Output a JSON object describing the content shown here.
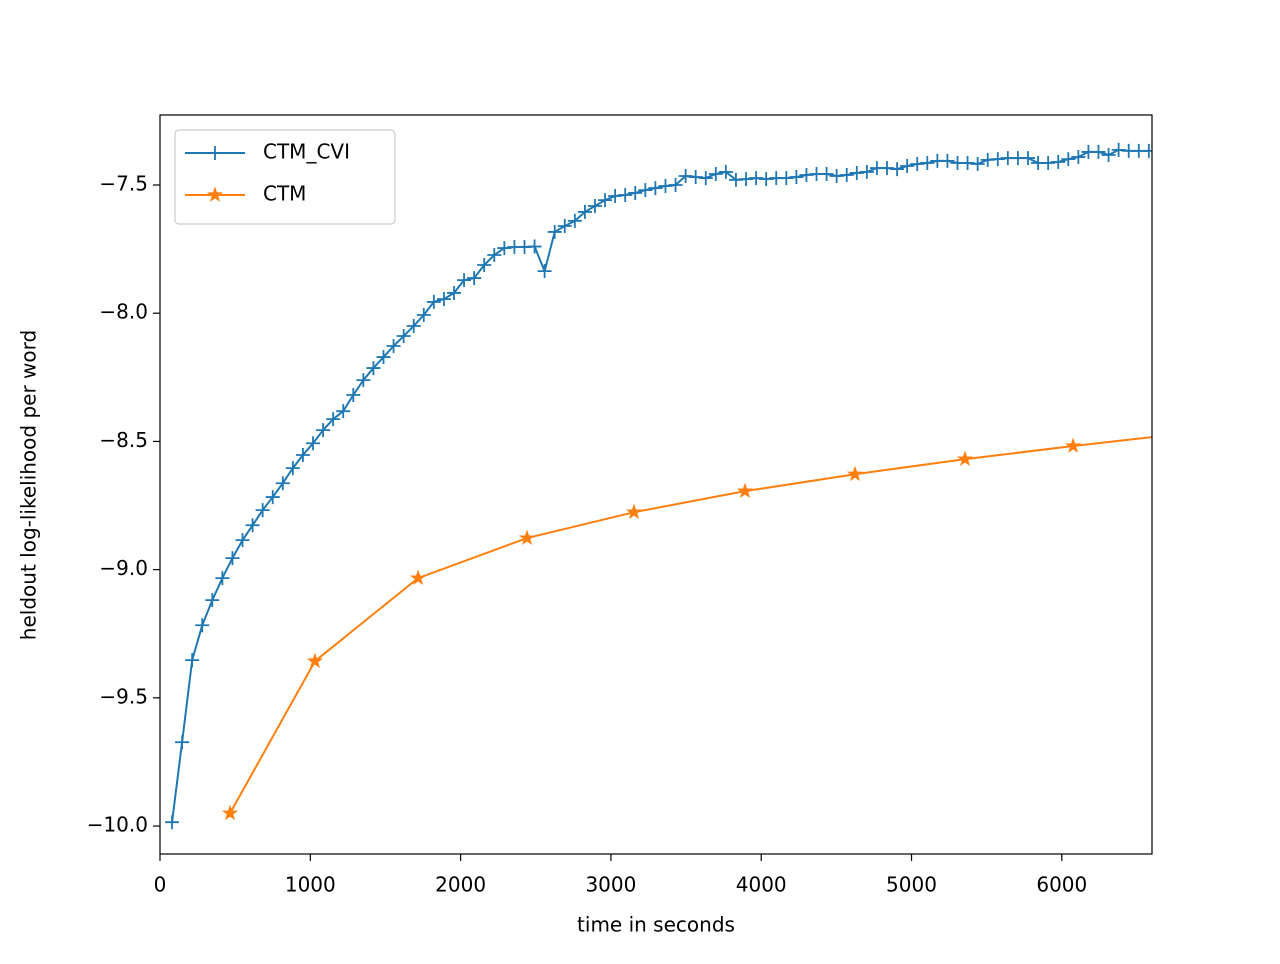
{
  "chart_data": {
    "type": "line",
    "xlabel": "time in seconds",
    "ylabel": "heldout log-likelihood per word",
    "xlim": [
      0,
      6600
    ],
    "ylim": [
      -10.109,
      -7.227
    ],
    "xticks": [
      0,
      1000,
      2000,
      3000,
      4000,
      5000,
      6000
    ],
    "yticks": [
      {
        "value": -10.0,
        "label": "−10.0"
      },
      {
        "value": -9.5,
        "label": "−9.5"
      },
      {
        "value": -9.0,
        "label": "−9.0"
      },
      {
        "value": -8.5,
        "label": "−8.5"
      },
      {
        "value": -8.0,
        "label": "−8.0"
      },
      {
        "value": -7.5,
        "label": "−7.5"
      }
    ],
    "legend": "upper left",
    "series": [
      {
        "name": "CTM_CVI",
        "color": "#1f77b4",
        "marker": "plus",
        "x": [
          80,
          147,
          214,
          281,
          348,
          415,
          482,
          549,
          616,
          683,
          750,
          817,
          884,
          951,
          1018,
          1085,
          1152,
          1219,
          1286,
          1353,
          1420,
          1487,
          1554,
          1621,
          1688,
          1755,
          1822,
          1889,
          1956,
          2023,
          2090,
          2157,
          2224,
          2291,
          2358,
          2425,
          2492,
          2559,
          2626,
          2693,
          2760,
          2827,
          2894,
          2961,
          3028,
          3095,
          3162,
          3229,
          3296,
          3363,
          3430,
          3497,
          3564,
          3631,
          3698,
          3765,
          3832,
          3899,
          3966,
          4033,
          4100,
          4167,
          4234,
          4301,
          4368,
          4435,
          4502,
          4569,
          4636,
          4703,
          4770,
          4837,
          4904,
          4971,
          5038,
          5105,
          5172,
          5239,
          5306,
          5373,
          5440,
          5507,
          5574,
          5641,
          5708,
          5775,
          5842,
          5909,
          5976,
          6043,
          6110,
          6177,
          6244,
          6311,
          6378,
          6445,
          6512,
          6579
        ],
        "values": [
          -9.985,
          -9.673,
          -9.353,
          -9.217,
          -9.119,
          -9.033,
          -8.955,
          -8.885,
          -8.827,
          -8.768,
          -8.717,
          -8.663,
          -8.604,
          -8.553,
          -8.507,
          -8.456,
          -8.413,
          -8.382,
          -8.319,
          -8.261,
          -8.214,
          -8.171,
          -8.128,
          -8.089,
          -8.05,
          -8.007,
          -7.956,
          -7.945,
          -7.921,
          -7.871,
          -7.863,
          -7.812,
          -7.773,
          -7.746,
          -7.742,
          -7.742,
          -7.74,
          -7.836,
          -7.683,
          -7.66,
          -7.64,
          -7.605,
          -7.582,
          -7.559,
          -7.543,
          -7.539,
          -7.531,
          -7.52,
          -7.512,
          -7.504,
          -7.5,
          -7.465,
          -7.469,
          -7.473,
          -7.457,
          -7.449,
          -7.48,
          -7.477,
          -7.473,
          -7.477,
          -7.473,
          -7.473,
          -7.469,
          -7.461,
          -7.457,
          -7.457,
          -7.465,
          -7.461,
          -7.453,
          -7.449,
          -7.434,
          -7.434,
          -7.438,
          -7.426,
          -7.418,
          -7.414,
          -7.406,
          -7.406,
          -7.414,
          -7.414,
          -7.418,
          -7.402,
          -7.399,
          -7.395,
          -7.395,
          -7.395,
          -7.414,
          -7.414,
          -7.41,
          -7.399,
          -7.391,
          -7.371,
          -7.371,
          -7.383,
          -7.363,
          -7.367,
          -7.367,
          -7.367
        ]
      },
      {
        "name": "CTM",
        "color": "#ff7f0e",
        "marker": "star",
        "x": [
          466,
          1031,
          1717,
          2442,
          3154,
          3892,
          4624,
          5356,
          6075,
          6800
        ],
        "values": [
          -9.95,
          -9.357,
          -9.033,
          -8.877,
          -8.776,
          -8.694,
          -8.628,
          -8.569,
          -8.518,
          -8.47
        ]
      }
    ]
  }
}
